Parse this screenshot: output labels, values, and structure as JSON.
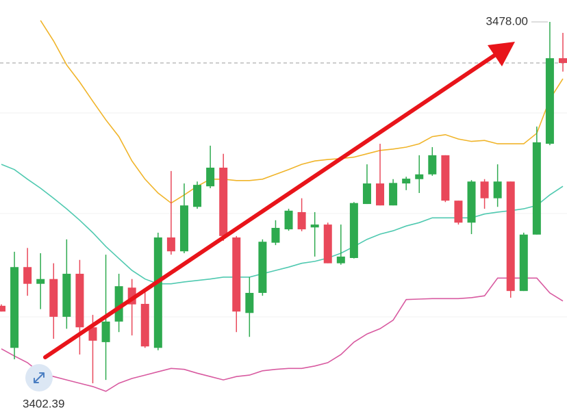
{
  "chart_data": {
    "type": "candlestick",
    "max_label": "3478.00",
    "min_label": "3402.39",
    "ylim": [
      3396.38,
      3482.58
    ],
    "up_color": "#2eaa4f",
    "down_color": "#e9485a",
    "open": [
      3418.6,
      3409.8,
      3426.7,
      3423.2,
      3424.2,
      3416.3,
      3425.3,
      3414.1,
      3411.0,
      3415.3,
      3422.4,
      3419.0,
      3409.8,
      3432.9,
      3430.0,
      3439.3,
      3443.6,
      3447.5,
      3432.9,
      3417.1,
      3421.3,
      3431.8,
      3434.6,
      3438.2,
      3435.0,
      3435.6,
      3427.5,
      3428.6,
      3439.9,
      3444.2,
      3439.6,
      3444.2,
      3445.1,
      3446.1,
      3450.1,
      3440.6,
      3436.0,
      3444.6,
      3441.1,
      3444.6,
      3421.7,
      3433.5,
      3452.5,
      3470.4
    ],
    "high": [
      3418.9,
      3429.9,
      3430.7,
      3429.6,
      3427.5,
      3432.5,
      3428.2,
      3416.7,
      3429.3,
      3425.3,
      3424.2,
      3421.7,
      3433.9,
      3446.8,
      3444.2,
      3444.6,
      3452.1,
      3450.4,
      3433.2,
      3424.6,
      3432.5,
      3436.5,
      3438.9,
      3441.1,
      3438.2,
      3436.0,
      3435.6,
      3440.3,
      3448.2,
      3452.5,
      3445.1,
      3445.6,
      3450.1,
      3451.8,
      3450.1,
      3440.6,
      3444.9,
      3445.1,
      3448.2,
      3444.6,
      3433.9,
      3456.1,
      3478.0,
      3475.7
    ],
    "low": [
      3417.4,
      3407.4,
      3420.7,
      3417.9,
      3411.7,
      3413.8,
      3408.4,
      3402.39,
      3403.1,
      3413.1,
      3412.4,
      3409.8,
      3409.3,
      3429.3,
      3429.6,
      3438.9,
      3443.2,
      3432.2,
      3413.1,
      3412.1,
      3420.7,
      3431.3,
      3434.3,
      3434.2,
      3428.9,
      3427.5,
      3427.2,
      3428.5,
      3439.9,
      3439.6,
      3439.6,
      3442.8,
      3442.2,
      3445.8,
      3440.3,
      3435.6,
      3433.6,
      3438.9,
      3439.3,
      3420.3,
      3421.7,
      3433.5,
      3452.2,
      3467.6
    ],
    "close": [
      3417.4,
      3426.7,
      3423.2,
      3424.2,
      3416.3,
      3425.3,
      3414.1,
      3411.3,
      3415.3,
      3422.7,
      3418.9,
      3410.1,
      3432.9,
      3430.0,
      3439.6,
      3443.9,
      3447.5,
      3433.2,
      3417.4,
      3421.3,
      3432.0,
      3434.9,
      3438.5,
      3434.6,
      3435.6,
      3427.5,
      3428.9,
      3440.1,
      3444.2,
      3439.6,
      3444.3,
      3445.2,
      3446.1,
      3450.1,
      3440.6,
      3436.0,
      3444.6,
      3441.1,
      3444.6,
      3421.7,
      3433.5,
      3452.8,
      3470.4,
      3469.4
    ],
    "lines": [
      {
        "color": "#f0b429",
        "values": [
          null,
          null,
          null,
          3478.3,
          3474.0,
          3469.0,
          3465.4,
          3461.4,
          3457.5,
          3454.0,
          3448.9,
          3445.1,
          3442.2,
          3440.1,
          3441.8,
          3443.6,
          3445.1,
          3445.1,
          3444.8,
          3444.8,
          3445.1,
          3446.1,
          3447.1,
          3448.2,
          3448.9,
          3449.2,
          3449.4,
          3449.7,
          3450.4,
          3451.1,
          3451.4,
          3451.8,
          3452.5,
          3454.0,
          3454.4,
          3453.5,
          3453.0,
          3453.2,
          3452.5,
          3452.5,
          3452.5,
          3454.7,
          3461.8,
          3466.1
        ]
      },
      {
        "color": "#4fc9b0",
        "values": [
          3448.2,
          3447.1,
          3445.1,
          3443.2,
          3441.1,
          3438.9,
          3436.5,
          3433.9,
          3431.0,
          3428.5,
          3426.0,
          3424.2,
          3423.2,
          3423.2,
          3423.6,
          3423.9,
          3424.2,
          3424.6,
          3424.6,
          3424.6,
          3425.3,
          3426.0,
          3426.7,
          3427.5,
          3427.9,
          3428.6,
          3429.6,
          3431.0,
          3432.5,
          3433.6,
          3434.3,
          3435.3,
          3436.0,
          3437.0,
          3437.0,
          3437.0,
          3437.0,
          3437.8,
          3438.2,
          3438.5,
          3438.9,
          3439.6,
          3441.8,
          3443.6
        ]
      },
      {
        "color": "#d85aa0",
        "values": [
          3409.6,
          3408.1,
          3406.7,
          3404.5,
          3403.8,
          3403.1,
          3402.4,
          3401.7,
          3400.7,
          3402.4,
          3403.4,
          3404.1,
          3404.8,
          3405.5,
          3405.3,
          3404.5,
          3403.8,
          3403.1,
          3403.8,
          3404.1,
          3405.0,
          3405.3,
          3405.5,
          3405.5,
          3406.0,
          3406.7,
          3408.4,
          3411.0,
          3412.7,
          3413.8,
          3415.6,
          3419.9,
          3420.0,
          3420.1,
          3420.1,
          3420.1,
          3420.3,
          3420.7,
          3424.4,
          3424.4,
          3424.4,
          3424.4,
          3421.3,
          3419.6
        ]
      }
    ]
  }
}
